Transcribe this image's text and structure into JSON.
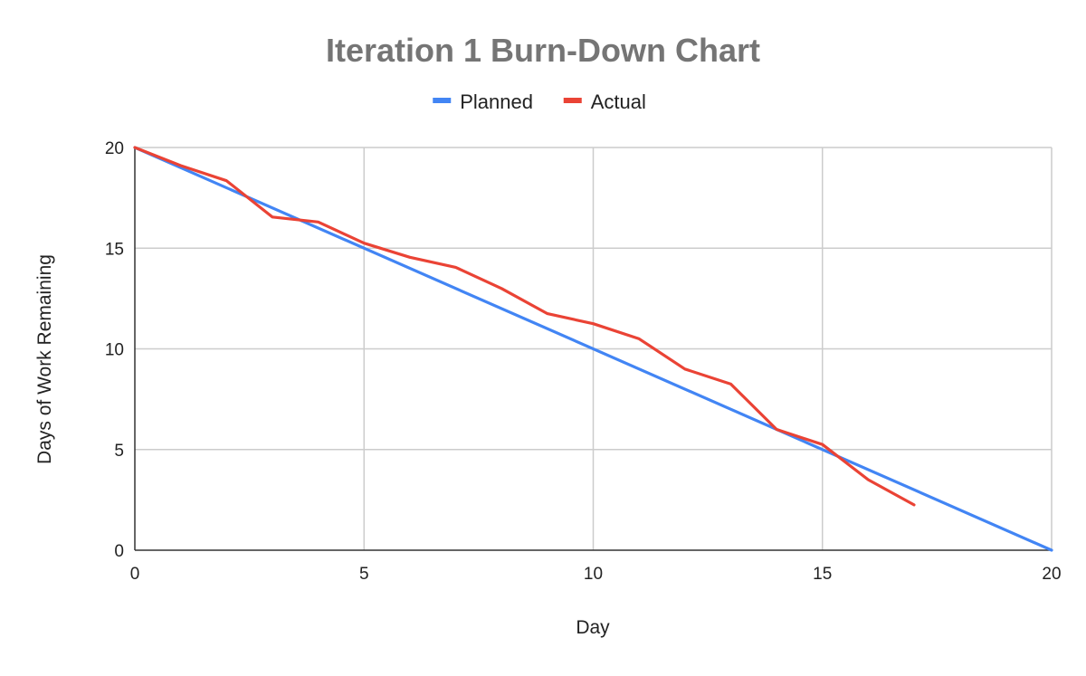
{
  "chart_data": {
    "type": "line",
    "title": "Iteration 1 Burn-Down Chart",
    "xlabel": "Day",
    "ylabel": "Days of Work Remaining",
    "xlim": [
      0,
      20
    ],
    "ylim": [
      0,
      20
    ],
    "xticks": [
      0,
      5,
      10,
      15,
      20
    ],
    "yticks": [
      0,
      5,
      10,
      15,
      20
    ],
    "grid": true,
    "legend_position": "top-center",
    "colors": {
      "title": "#757575",
      "grid": "#cccccc",
      "axis": "#333333"
    },
    "series": [
      {
        "name": "Planned",
        "color": "#4285f4",
        "x": [
          0,
          20
        ],
        "y": [
          20,
          0
        ]
      },
      {
        "name": "Actual",
        "color": "#ea4335",
        "x": [
          0,
          1,
          2,
          3,
          4,
          5,
          6,
          7,
          8,
          9,
          10,
          11,
          12,
          13,
          14,
          15,
          16,
          17
        ],
        "y": [
          20,
          19.1,
          18.35,
          16.55,
          16.3,
          15.25,
          14.55,
          14.05,
          13,
          11.75,
          11.25,
          10.5,
          9,
          8.25,
          6,
          5.25,
          3.5,
          2.25
        ]
      }
    ]
  }
}
